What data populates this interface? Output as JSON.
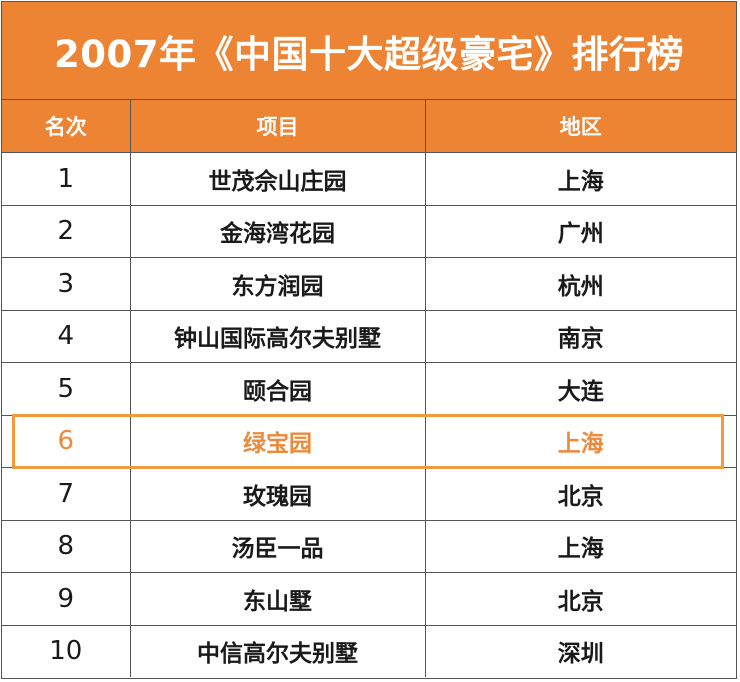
{
  "title": "2007年《中国十大超级豪宅》排行榜",
  "columns": [
    "名次",
    "项目",
    "地区"
  ],
  "rows": [
    {
      "rank": "1",
      "project": "世茂佘山庄园",
      "region": "上海"
    },
    {
      "rank": "2",
      "project": "金海湾花园",
      "region": "广州"
    },
    {
      "rank": "3",
      "project": "东方润园",
      "region": "杭州"
    },
    {
      "rank": "4",
      "project": "钟山国际高尔夫别墅",
      "region": "南京"
    },
    {
      "rank": "5",
      "project": "颐合园",
      "region": "大连"
    },
    {
      "rank": "6",
      "project": "绿宝园",
      "region": "上海"
    },
    {
      "rank": "7",
      "project": "玫瑰园",
      "region": "北京"
    },
    {
      "rank": "8",
      "project": "汤臣一品",
      "region": "上海"
    },
    {
      "rank": "9",
      "project": "东山墅",
      "region": "北京"
    },
    {
      "rank": "10",
      "project": "中信高尔夫别墅",
      "region": "深圳"
    }
  ],
  "highlighted_rank": "6",
  "colors": {
    "header_bg": "#ec8433",
    "highlight": "#ec8a3c"
  }
}
